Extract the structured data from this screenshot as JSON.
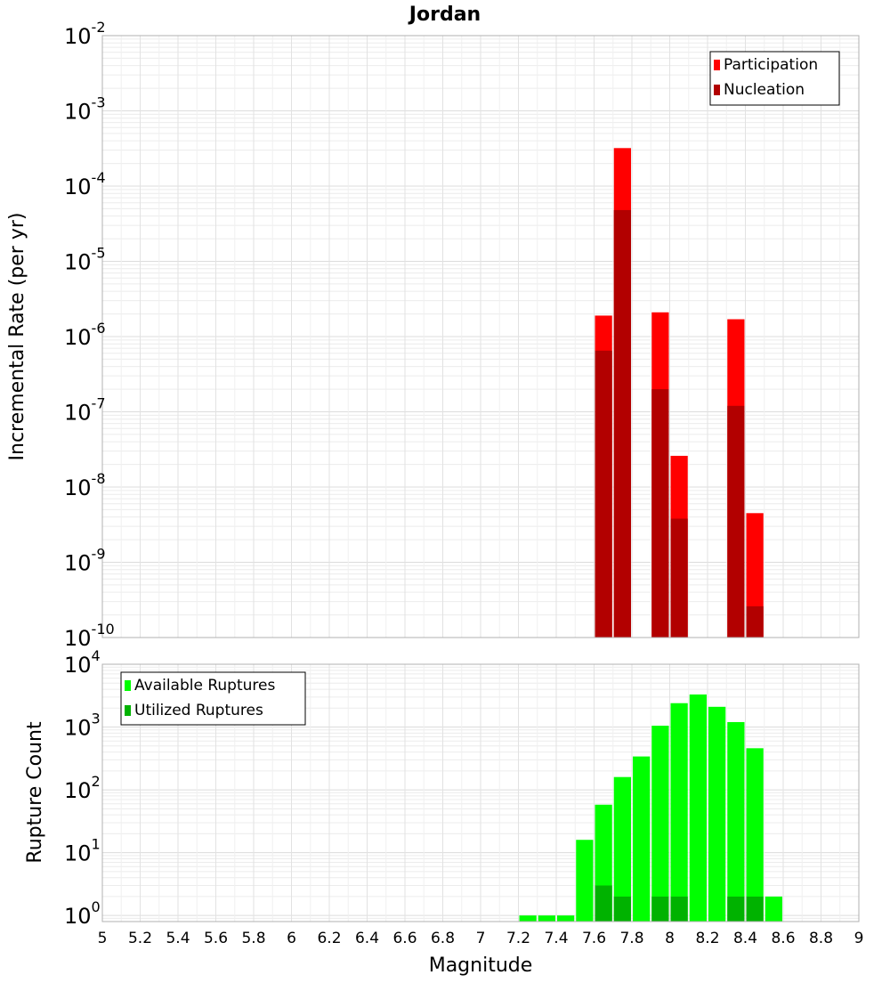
{
  "chart_data": [
    {
      "type": "bar",
      "title": "Jordan",
      "xlabel": "",
      "ylabel": "Incremental Rate (per yr)",
      "y_scale": "log",
      "xlim": [
        5,
        9
      ],
      "ylim": [
        1e-10,
        0.01
      ],
      "y_ticks": [
        {
          "base": "10",
          "exp": "-10",
          "value": 1e-10
        },
        {
          "base": "10",
          "exp": "-9",
          "value": 1e-09
        },
        {
          "base": "10",
          "exp": "-8",
          "value": 1e-08
        },
        {
          "base": "10",
          "exp": "-7",
          "value": 1e-07
        },
        {
          "base": "10",
          "exp": "-6",
          "value": 1e-06
        },
        {
          "base": "10",
          "exp": "-5",
          "value": 1e-05
        },
        {
          "base": "10",
          "exp": "-4",
          "value": 0.0001
        },
        {
          "base": "10",
          "exp": "-3",
          "value": 0.001
        },
        {
          "base": "10",
          "exp": "-2",
          "value": 0.01
        }
      ],
      "bin_width": 0.1,
      "grid": true,
      "legend_position": "top-right",
      "series": [
        {
          "name": "Participation",
          "color": "#ff0000",
          "x": [
            7.65,
            7.75,
            7.95,
            8.05,
            8.35,
            8.45
          ],
          "values": [
            1.9e-06,
            0.00032,
            2.1e-06,
            2.6e-08,
            1.7e-06,
            4.5e-09
          ]
        },
        {
          "name": "Nucleation",
          "color": "#b20000",
          "x": [
            7.65,
            7.75,
            7.95,
            8.05,
            8.35,
            8.45
          ],
          "values": [
            6.5e-07,
            4.8e-05,
            2e-07,
            3.8e-09,
            1.2e-07,
            2.6e-10
          ]
        }
      ]
    },
    {
      "type": "bar",
      "title": "",
      "xlabel": "Magnitude",
      "ylabel": "Rupture Count",
      "y_scale": "log",
      "xlim": [
        5,
        9
      ],
      "ylim": [
        0.8,
        10000.0
      ],
      "x_ticks": [
        "5",
        "5.2",
        "5.4",
        "5.6",
        "5.8",
        "6",
        "6.2",
        "6.4",
        "6.6",
        "6.8",
        "7",
        "7.2",
        "7.4",
        "7.6",
        "7.8",
        "8",
        "8.2",
        "8.4",
        "8.6",
        "8.8",
        "9"
      ],
      "y_ticks": [
        {
          "base": "10",
          "exp": "0",
          "value": 1
        },
        {
          "base": "10",
          "exp": "1",
          "value": 10
        },
        {
          "base": "10",
          "exp": "2",
          "value": 100
        },
        {
          "base": "10",
          "exp": "3",
          "value": 1000
        },
        {
          "base": "10",
          "exp": "4",
          "value": 10000
        }
      ],
      "bin_width": 0.1,
      "grid": true,
      "legend_position": "top-left",
      "series": [
        {
          "name": "Available Ruptures",
          "color": "#00ff00",
          "x": [
            7.25,
            7.35,
            7.45,
            7.55,
            7.65,
            7.75,
            7.85,
            7.95,
            8.05,
            8.15,
            8.25,
            8.35,
            8.45,
            8.55
          ],
          "values": [
            1,
            1,
            1,
            16,
            58,
            160,
            340,
            1050,
            2400,
            3300,
            2100,
            1200,
            460,
            2
          ]
        },
        {
          "name": "Utilized Ruptures",
          "color": "#00b200",
          "x": [
            7.65,
            7.75,
            7.95,
            8.05,
            8.35,
            8.45
          ],
          "values": [
            3,
            2,
            2,
            2,
            2,
            2
          ]
        }
      ]
    }
  ]
}
